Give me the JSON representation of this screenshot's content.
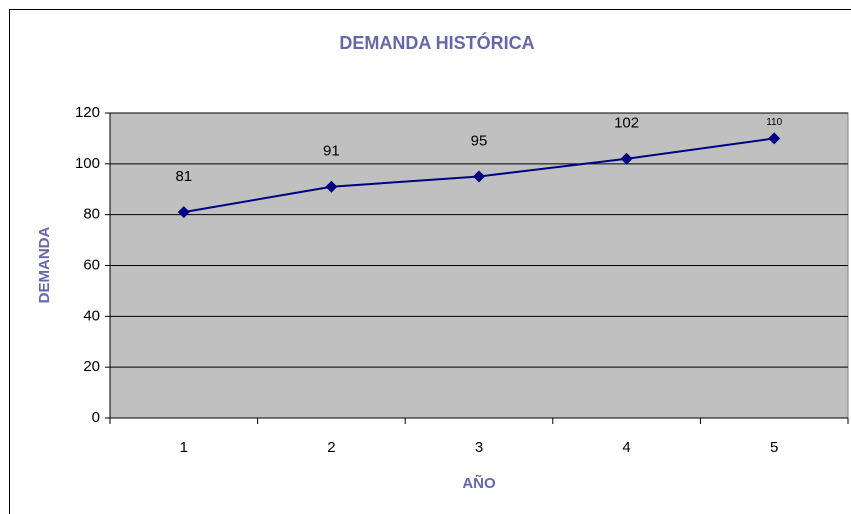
{
  "chart_data": {
    "type": "line",
    "title": "DEMANDA HISTÓRICA",
    "x_label": "AÑO",
    "y_label": "DEMANDA",
    "categories": [
      "1",
      "2",
      "3",
      "4",
      "5"
    ],
    "series": [
      {
        "name": "Demanda",
        "color": "#000080",
        "values": [
          81,
          91,
          95,
          102,
          110
        ]
      }
    ],
    "ylim": [
      0,
      120
    ],
    "yticks": [
      0,
      20,
      40,
      60,
      80,
      100,
      120
    ],
    "grid": true,
    "plot_background": "#c0c0c0"
  }
}
